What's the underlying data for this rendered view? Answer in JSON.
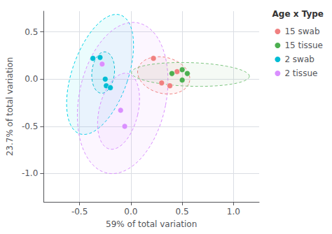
{
  "chart_data": {
    "type": "scatter",
    "xlabel": "59% of total variation",
    "ylabel": "23.7% of total variation",
    "xlim": [
      -0.85,
      1.25
    ],
    "ylim": [
      -1.3,
      0.72
    ],
    "xticks": [
      -0.5,
      {
        "value": 0,
        "label": "0.0"
      },
      0.5,
      {
        "value": 1,
        "label": "1.0"
      }
    ],
    "yticks": [
      {
        "value": -1,
        "label": "-1.0"
      },
      -0.5,
      {
        "value": 0,
        "label": "0.0"
      },
      0.5
    ],
    "grid": true,
    "legend": "upper right",
    "legend_title": "Age x Type",
    "marker": "circle",
    "series": [
      {
        "name": "15 swab",
        "color": "#f08080",
        "x": [
          0.22,
          0.3,
          0.38,
          0.45
        ],
        "y": [
          0.22,
          -0.04,
          -0.07,
          0.08
        ]
      },
      {
        "name": "15 tissue",
        "color": "#4caf50",
        "x": [
          0.4,
          0.5,
          0.55,
          0.5
        ],
        "y": [
          0.06,
          0.1,
          0.06,
          -0.01
        ]
      },
      {
        "name": "2 swab",
        "color": "#00bcd4",
        "x": [
          -0.37,
          -0.3,
          -0.25,
          -0.24,
          -0.2
        ],
        "y": [
          0.22,
          0.23,
          0.0,
          -0.07,
          -0.09
        ]
      },
      {
        "name": "2 tissue",
        "color": "#da8fff",
        "x": [
          -0.28,
          -0.1,
          -0.06
        ],
        "y": [
          0.16,
          -0.33,
          -0.5
        ]
      }
    ],
    "ellipses": [
      {
        "cx": -0.3,
        "cy": 0.05,
        "width": 0.55,
        "height": 1.32,
        "angle": -17,
        "color": "#00d4e8",
        "line_style": "dashed"
      },
      {
        "cx": -0.08,
        "cy": -0.2,
        "width": 0.85,
        "height": 1.62,
        "angle": -10,
        "color": "#da8fff",
        "line_style": "dashed"
      },
      {
        "cx": 0.32,
        "cy": 0.04,
        "width": 0.52,
        "height": 0.38,
        "angle": -18,
        "color": "#f08080",
        "line_style": "dashed"
      },
      {
        "cx": 0.58,
        "cy": 0.05,
        "width": 1.15,
        "height": 0.25,
        "angle": -2,
        "color": "#7bc47e",
        "line_style": "dashed"
      },
      {
        "cx": -0.27,
        "cy": 0.07,
        "width": 0.22,
        "height": 0.44,
        "angle": -5,
        "color": "#00bcd4",
        "line_style": "dashed"
      },
      {
        "cx": -0.12,
        "cy": -0.34,
        "width": 0.38,
        "height": 0.82,
        "angle": -12,
        "color": "#da8fff",
        "line_style": "dashed"
      }
    ]
  }
}
